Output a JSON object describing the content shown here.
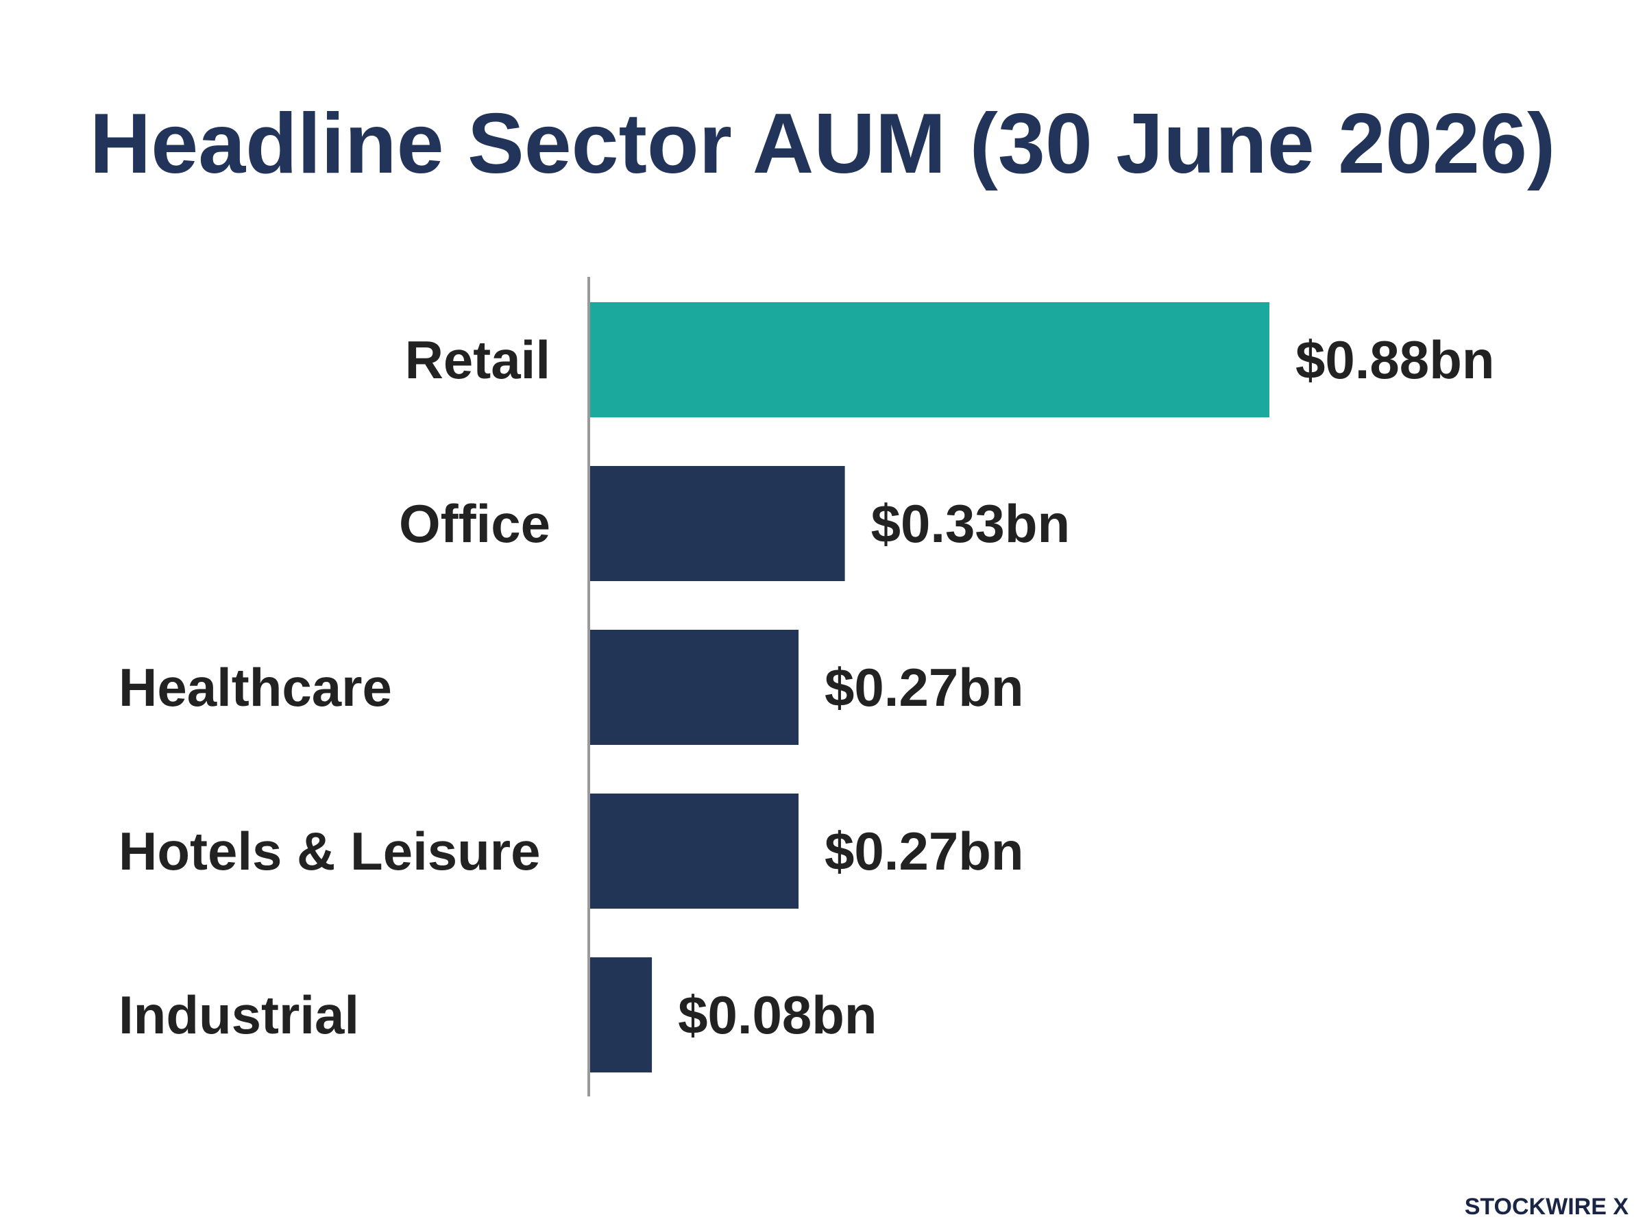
{
  "chart_data": {
    "type": "bar",
    "orientation": "horizontal",
    "title": "Headline Sector AUM (30 June 2026)",
    "categories": [
      "Retail",
      "Office",
      "Healthcare",
      "Hotels & Leisure",
      "Industrial"
    ],
    "values": [
      0.88,
      0.33,
      0.27,
      0.27,
      0.08
    ],
    "value_labels": [
      "$0.88bn",
      "$0.33bn",
      "$0.27bn",
      "$0.27bn",
      "$0.08bn"
    ],
    "unit": "$bn",
    "xlabel": "",
    "ylabel": "",
    "xlim": [
      0,
      0.88
    ],
    "grid": false,
    "legend": "none",
    "highlight_color": "#1ba99d",
    "bar_color": "#233556",
    "axis_color": "#9a9a9a",
    "label_color": "#222222"
  },
  "brand": {
    "name": "STOCKWIRE X"
  }
}
